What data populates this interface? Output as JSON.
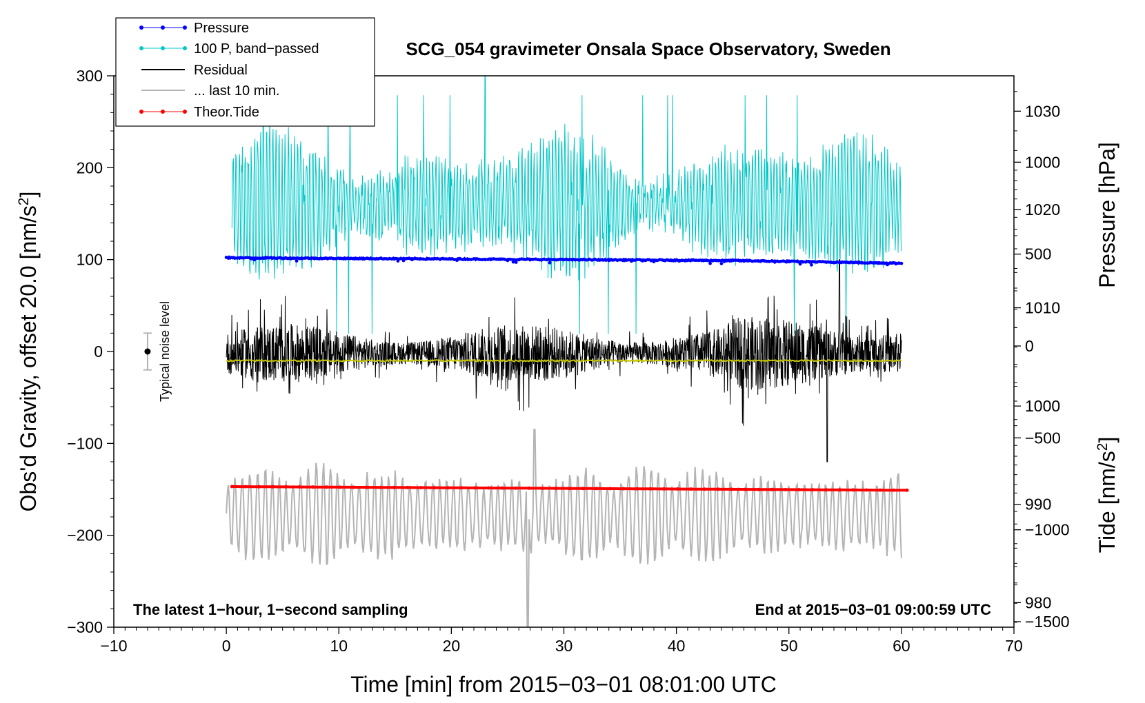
{
  "chart_data": {
    "type": "line",
    "title": "SCG_054 gravimeter Onsala Space Observatory, Sweden",
    "xlabel": "Time [min] from 2015−03−01 08:01:00 UTC",
    "ylabel_left": "Obs'd Gravity, offset 20.0 [nm/s",
    "ylabel_left_sup": "2",
    "ylabel_left_end": "]",
    "ylabel_right_pressure": "Pressure [hPa]",
    "ylabel_right_tide": "Tide [nm/s",
    "ylabel_right_tide_sup": "2",
    "ylabel_right_tide_end": "]",
    "xlim": [
      -10,
      70
    ],
    "ylim_left": [
      -300,
      300
    ],
    "x_ticks": [
      -10,
      0,
      10,
      20,
      30,
      40,
      50,
      60,
      70
    ],
    "x_tick_labels": [
      "−10",
      "0",
      "10",
      "20",
      "30",
      "40",
      "50",
      "60",
      "70"
    ],
    "y_left_ticks": [
      300,
      200,
      100,
      0,
      -100,
      -200,
      -300
    ],
    "y_left_tick_labels": [
      "300",
      "200",
      "100",
      "0",
      "−100",
      "−200",
      "−300"
    ],
    "pressure_axis": {
      "ticks": [
        1030,
        1020,
        1010,
        1000,
        990,
        980
      ],
      "tick_labels": [
        "1030",
        "1020",
        "1010",
        "1000",
        "990",
        "980"
      ],
      "map": {
        "hpa_at_gravity_300": 1033.6,
        "hpa_per_nm_s2": 0.0935
      }
    },
    "tide_axis": {
      "ticks": [
        1000,
        500,
        0,
        -500,
        -1000,
        -1500
      ],
      "tick_labels": [
        "1000",
        "500",
        "0",
        "−500",
        "−1000",
        "−1500"
      ],
      "map": {
        "tide_at_gravity_300": 1470,
        "tide_per_nm_s2": 5.0
      }
    },
    "legend": [
      {
        "label": "Pressure",
        "color": "#0000ff",
        "marker": true
      },
      {
        "label": "100 P, band−passed",
        "color": "#00c8c8",
        "marker": true
      },
      {
        "label": "Residual",
        "color": "#000000",
        "marker": false
      },
      {
        "label": "... last 10 min.",
        "color": "#b4b4b4",
        "marker": false
      },
      {
        "label": "Theor.Tide",
        "color": "#ff0000",
        "marker": true
      }
    ],
    "legend_position": "top-left",
    "series": [
      {
        "name": "Pressure",
        "color": "#0000ff",
        "x": [
          0,
          15,
          30,
          45,
          60
        ],
        "y": [
          102,
          101,
          100,
          99,
          96
        ]
      },
      {
        "name": "100 P, band−passed",
        "color": "#00c8c8",
        "x_range": [
          0.5,
          60
        ],
        "center": 160,
        "amplitude": 80,
        "peak_max": 302,
        "trough_min": -5
      },
      {
        "name": "Residual",
        "color": "#000000",
        "x_range": [
          0,
          60
        ],
        "center": -2,
        "amplitude": 50,
        "peak_max": 100,
        "trough_min": -120
      },
      {
        "name": "... last 10 min.",
        "color": "#b4b4b4",
        "x_range": [
          0,
          60
        ],
        "center": -178,
        "amplitude": 55,
        "peak_max": -85,
        "trough_min": -300
      },
      {
        "name": "Residual mean",
        "color": "#c8c800",
        "x": [
          0,
          20,
          40,
          60
        ],
        "y": [
          -10,
          -10,
          -10,
          -10
        ]
      },
      {
        "name": "Theor.Tide",
        "color": "#ff0000",
        "x": [
          0.5,
          30,
          60.5
        ],
        "y": [
          -147,
          -149,
          -151
        ]
      }
    ],
    "noise_bar": {
      "label": "Typical noise level",
      "x": -7,
      "center": 0,
      "low": -20,
      "high": 20
    },
    "annotation_left": "The latest 1−hour, 1−second sampling",
    "annotation_right": "End at 2015−03−01 09:00:59 UTC"
  }
}
